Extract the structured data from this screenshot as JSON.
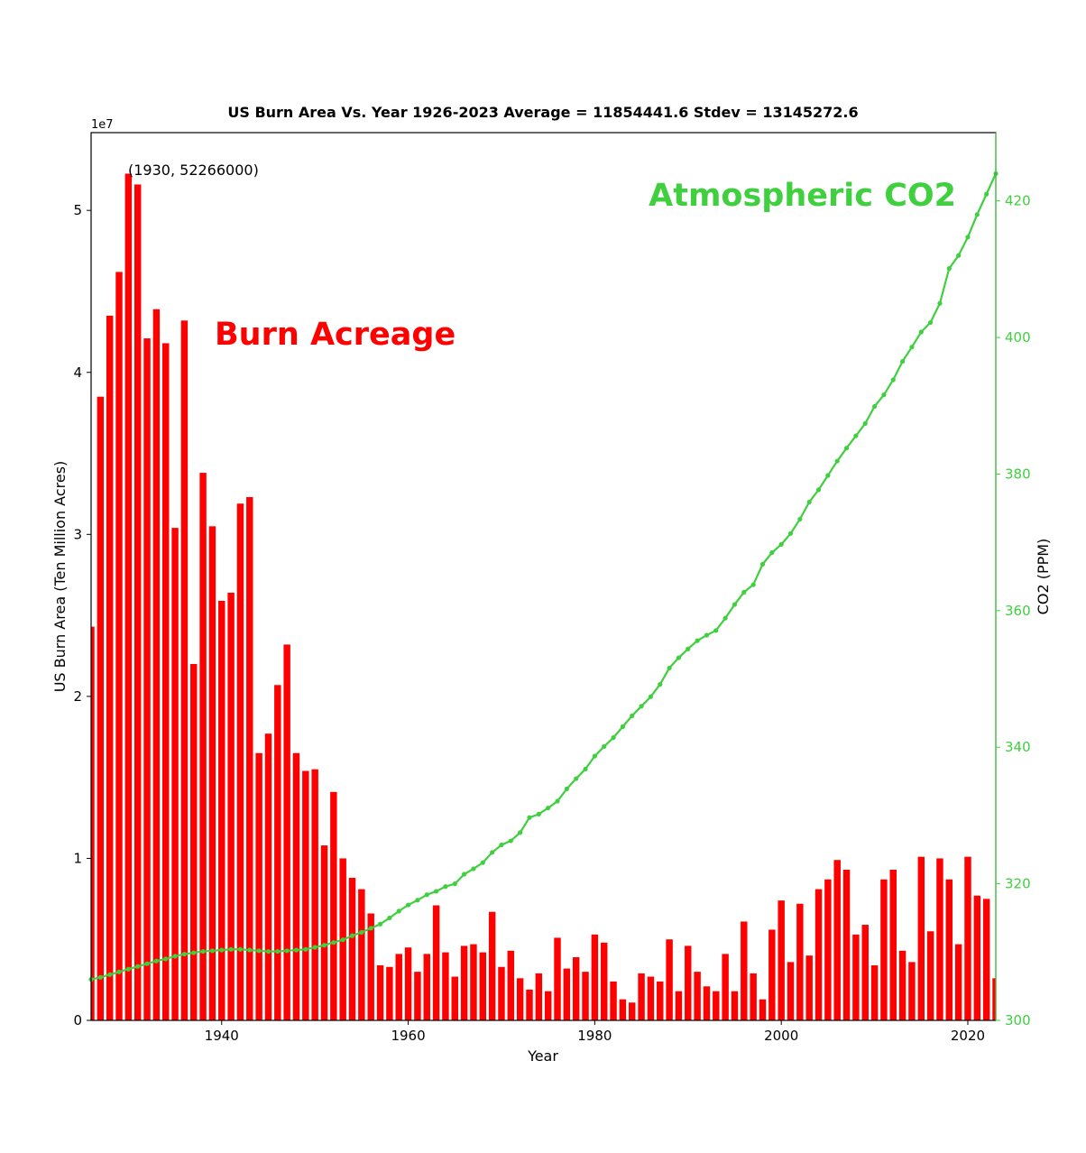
{
  "chart_data": {
    "type": "bar",
    "title": "US Burn Area Vs. Year 1926-2023 Average = 11854441.6 Stdev = 13145272.6",
    "xlabel": "Year",
    "ylabel": "US Burn Area (Ten Million Acres)",
    "y2label": "CO2 (PPM)",
    "y_offset_label": "1e7",
    "xlim": [
      1926,
      2023
    ],
    "ylim": [
      0,
      54800000
    ],
    "y2lim": [
      300,
      430
    ],
    "x_ticks": [
      1940,
      1960,
      1980,
      2000,
      2020
    ],
    "y_ticks": [
      0,
      10000000,
      20000000,
      30000000,
      40000000,
      50000000
    ],
    "y_tick_labels": [
      "0",
      "1",
      "2",
      "3",
      "4",
      "5"
    ],
    "y2_ticks": [
      300,
      320,
      340,
      360,
      380,
      400,
      420
    ],
    "annotation": {
      "text": "(1930, 52266000)",
      "x": 1930,
      "y": 52266000
    },
    "colors": {
      "bars": "#ff0000",
      "co2": "#3fcf3f"
    },
    "labels": {
      "burn": "Burn Acreage",
      "co2": "Atmospheric CO2"
    },
    "series": [
      {
        "name": "Burn Acreage",
        "type": "bar",
        "x": [
          1926,
          1927,
          1928,
          1929,
          1930,
          1931,
          1932,
          1933,
          1934,
          1935,
          1936,
          1937,
          1938,
          1939,
          1940,
          1941,
          1942,
          1943,
          1944,
          1945,
          1946,
          1947,
          1948,
          1949,
          1950,
          1951,
          1952,
          1953,
          1954,
          1955,
          1956,
          1957,
          1958,
          1959,
          1960,
          1961,
          1962,
          1963,
          1964,
          1965,
          1966,
          1967,
          1968,
          1969,
          1970,
          1971,
          1972,
          1973,
          1974,
          1975,
          1976,
          1977,
          1978,
          1979,
          1980,
          1981,
          1982,
          1983,
          1984,
          1985,
          1986,
          1987,
          1988,
          1989,
          1990,
          1991,
          1992,
          1993,
          1994,
          1995,
          1996,
          1997,
          1998,
          1999,
          2000,
          2001,
          2002,
          2003,
          2004,
          2005,
          2006,
          2007,
          2008,
          2009,
          2010,
          2011,
          2012,
          2013,
          2014,
          2015,
          2016,
          2017,
          2018,
          2019,
          2020,
          2021,
          2022,
          2023
        ],
        "values": [
          24300000,
          38500000,
          43500000,
          46200000,
          52266000,
          51600000,
          42100000,
          43900000,
          41800000,
          30400000,
          43200000,
          22000000,
          33800000,
          30500000,
          25900000,
          26400000,
          31900000,
          32300000,
          16500000,
          17700000,
          20700000,
          23200000,
          16500000,
          15400000,
          15500000,
          10800000,
          14100000,
          10000000,
          8800000,
          8100000,
          6600000,
          3400000,
          3300000,
          4100000,
          4500000,
          3000000,
          4100000,
          7100000,
          4200000,
          2700000,
          4600000,
          4700000,
          4200000,
          6700000,
          3300000,
          4300000,
          2600000,
          1900000,
          2900000,
          1800000,
          5100000,
          3200000,
          3900000,
          3000000,
          5300000,
          4800000,
          2400000,
          1300000,
          1100000,
          2900000,
          2700000,
          2400000,
          5000000,
          1800000,
          4600000,
          3000000,
          2100000,
          1800000,
          4100000,
          1800000,
          6100000,
          2900000,
          1300000,
          5600000,
          7400000,
          3600000,
          7200000,
          4000000,
          8100000,
          8700000,
          9900000,
          9300000,
          5300000,
          5900000,
          3400000,
          8700000,
          9300000,
          4300000,
          3600000,
          10100000,
          5500000,
          10000000,
          8700000,
          4700000,
          10100000,
          7700000,
          7500000,
          2600000
        ]
      },
      {
        "name": "Atmospheric CO2",
        "type": "line",
        "x": [
          1926,
          1927,
          1928,
          1929,
          1930,
          1931,
          1932,
          1933,
          1934,
          1935,
          1936,
          1937,
          1938,
          1939,
          1940,
          1941,
          1942,
          1943,
          1944,
          1945,
          1946,
          1947,
          1948,
          1949,
          1950,
          1951,
          1952,
          1953,
          1954,
          1955,
          1956,
          1957,
          1958,
          1959,
          1960,
          1961,
          1962,
          1963,
          1964,
          1965,
          1966,
          1967,
          1968,
          1969,
          1970,
          1971,
          1972,
          1973,
          1974,
          1975,
          1976,
          1977,
          1978,
          1979,
          1980,
          1981,
          1982,
          1983,
          1984,
          1985,
          1986,
          1987,
          1988,
          1989,
          1990,
          1991,
          1992,
          1993,
          1994,
          1995,
          1996,
          1997,
          1998,
          1999,
          2000,
          2001,
          2002,
          2003,
          2004,
          2005,
          2006,
          2007,
          2008,
          2009,
          2010,
          2011,
          2012,
          2013,
          2014,
          2015,
          2016,
          2017,
          2018,
          2019,
          2020,
          2021,
          2022,
          2023
        ],
        "values": [
          306.0,
          306.3,
          306.7,
          307.1,
          307.5,
          307.9,
          308.3,
          308.7,
          309.0,
          309.4,
          309.7,
          309.9,
          310.1,
          310.2,
          310.3,
          310.4,
          310.4,
          310.3,
          310.2,
          310.1,
          310.1,
          310.2,
          310.3,
          310.4,
          310.7,
          311.0,
          311.4,
          311.8,
          312.4,
          312.9,
          313.5,
          314.1,
          315.0,
          316.0,
          316.9,
          317.6,
          318.4,
          318.9,
          319.6,
          320.0,
          321.4,
          322.2,
          323.1,
          324.6,
          325.7,
          326.3,
          327.5,
          329.7,
          330.2,
          331.1,
          332.1,
          333.9,
          335.4,
          336.8,
          338.7,
          340.1,
          341.4,
          343.0,
          344.6,
          346.0,
          347.4,
          349.2,
          351.6,
          353.1,
          354.4,
          355.6,
          356.4,
          357.1,
          358.9,
          360.9,
          362.7,
          363.8,
          366.8,
          368.5,
          369.7,
          371.3,
          373.4,
          375.9,
          377.7,
          379.8,
          381.9,
          383.8,
          385.6,
          387.4,
          389.9,
          391.6,
          393.8,
          396.5,
          398.6,
          400.8,
          402.2,
          405.0,
          410.1,
          412.0,
          414.7,
          418.0,
          421.0,
          424.0
        ]
      }
    ]
  }
}
